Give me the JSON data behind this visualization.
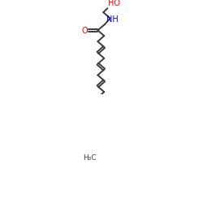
{
  "bg_color": "#ffffff",
  "bond_color": "#3a3a3a",
  "O_color": "#ff0000",
  "N_color": "#0000cd",
  "line_width": 1.4,
  "figsize": [
    2.5,
    2.5
  ],
  "dpi": 100,
  "HO_text": "HO",
  "NH_text": "NH",
  "O_text": "O",
  "H3C_text": "H₃C"
}
